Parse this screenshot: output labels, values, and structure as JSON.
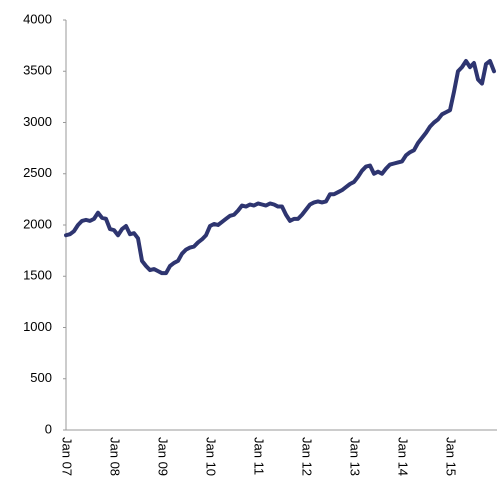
{
  "chart_data": {
    "type": "line",
    "categories": [
      "Jan 07",
      null,
      null,
      null,
      null,
      null,
      null,
      null,
      null,
      null,
      null,
      null,
      "Jan 08",
      null,
      null,
      null,
      null,
      null,
      null,
      null,
      null,
      null,
      null,
      null,
      "Jan 09",
      null,
      null,
      null,
      null,
      null,
      null,
      null,
      null,
      null,
      null,
      null,
      "Jan 10",
      null,
      null,
      null,
      null,
      null,
      null,
      null,
      null,
      null,
      null,
      null,
      "Jan 11",
      null,
      null,
      null,
      null,
      null,
      null,
      null,
      null,
      null,
      null,
      null,
      "Jan 12",
      null,
      null,
      null,
      null,
      null,
      null,
      null,
      null,
      null,
      null,
      null,
      "Jan 13",
      null,
      null,
      null,
      null,
      null,
      null,
      null,
      null,
      null,
      null,
      null,
      "Jan 14",
      null,
      null,
      null,
      null,
      null,
      null,
      null,
      null,
      null,
      null,
      null,
      "Jan 15",
      null,
      null,
      null,
      null,
      null,
      null,
      null,
      null,
      null,
      null,
      null
    ],
    "values": [
      1900,
      1910,
      1940,
      2000,
      2040,
      2050,
      2040,
      2060,
      2120,
      2070,
      2060,
      1960,
      1950,
      1900,
      1960,
      1990,
      1910,
      1920,
      1870,
      1650,
      1600,
      1560,
      1570,
      1550,
      1530,
      1530,
      1600,
      1630,
      1650,
      1720,
      1760,
      1780,
      1790,
      1830,
      1860,
      1900,
      1990,
      2010,
      2000,
      2030,
      2060,
      2090,
      2100,
      2140,
      2190,
      2180,
      2200,
      2190,
      2210,
      2200,
      2190,
      2210,
      2200,
      2180,
      2180,
      2100,
      2040,
      2060,
      2060,
      2100,
      2150,
      2200,
      2220,
      2230,
      2220,
      2230,
      2300,
      2300,
      2320,
      2340,
      2370,
      2400,
      2420,
      2470,
      2530,
      2570,
      2580,
      2500,
      2520,
      2500,
      2550,
      2590,
      2600,
      2610,
      2620,
      2680,
      2710,
      2730,
      2800,
      2850,
      2900,
      2960,
      3000,
      3030,
      3080,
      3100,
      3120,
      3300,
      3500,
      3540,
      3600,
      3540,
      3580,
      3420,
      3380,
      3570,
      3600,
      3500
    ],
    "color": "#2e3570",
    "ylim": [
      0,
      4000
    ],
    "yticks": [
      0,
      500,
      1000,
      1500,
      2000,
      2500,
      3000,
      3500,
      4000
    ]
  }
}
